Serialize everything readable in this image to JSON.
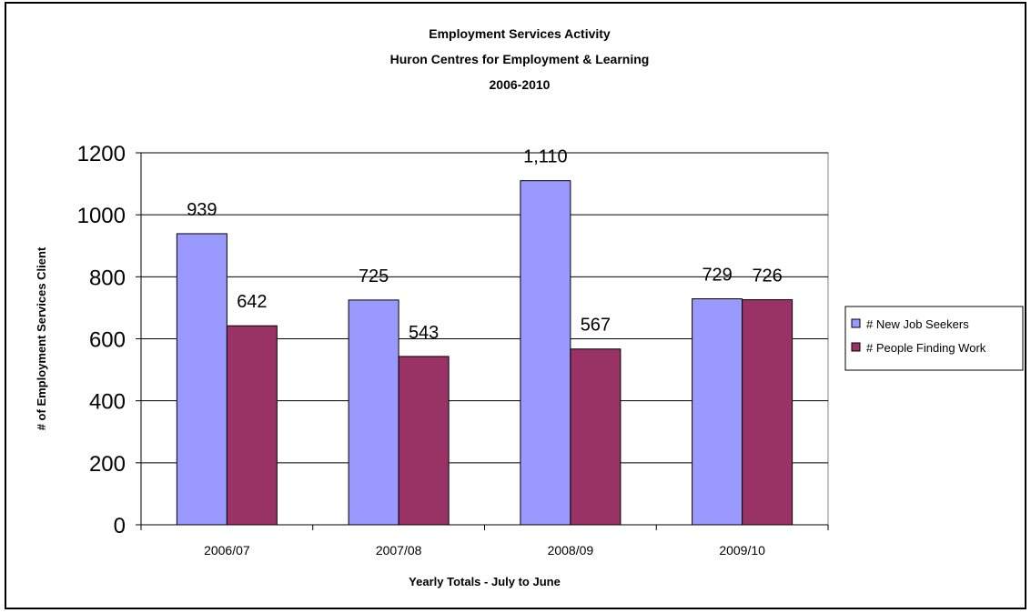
{
  "chart_data": {
    "type": "bar",
    "title": [
      "Employment Services Activity",
      "Huron Centres for Employment & Learning",
      "2006-2010"
    ],
    "xlabel": "Yearly Totals - July to June",
    "ylabel": "# of Employment Services Client",
    "categories": [
      "2006/07",
      "2007/08",
      "2008/09",
      "2009/10"
    ],
    "ylim": [
      0,
      1200
    ],
    "yticks": [
      0,
      200,
      400,
      600,
      800,
      1000,
      1200
    ],
    "grid": true,
    "legend_position": "right",
    "series": [
      {
        "name": "# New Job Seekers",
        "color": "#9999ff",
        "values": [
          939,
          725,
          1110,
          729
        ],
        "labels": [
          "939",
          "725",
          "1,110",
          "729"
        ]
      },
      {
        "name": "# People Finding Work",
        "color": "#993366",
        "values": [
          642,
          543,
          567,
          726
        ],
        "labels": [
          "642",
          "543",
          "567",
          "726"
        ]
      }
    ]
  }
}
